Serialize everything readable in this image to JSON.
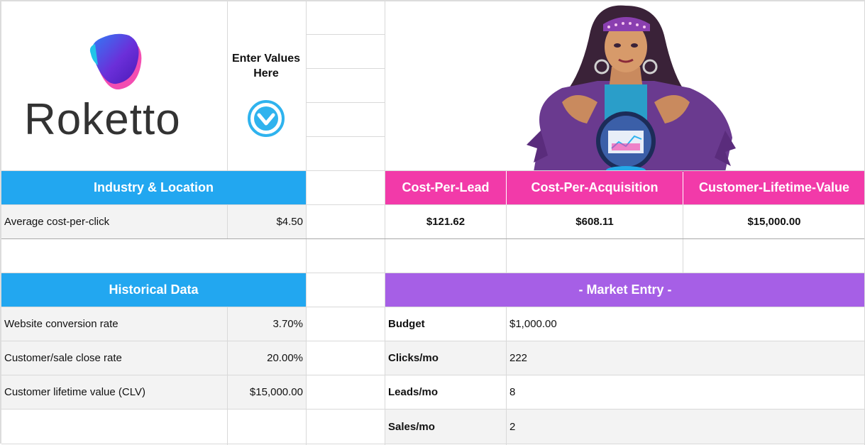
{
  "brand": {
    "name": "Roketto"
  },
  "enter_values": {
    "label": "Enter Values Here"
  },
  "industry": {
    "title": "Industry & Location",
    "rows": [
      {
        "label": "Average cost-per-click",
        "value": "$4.50"
      }
    ]
  },
  "historical": {
    "title": "Historical Data",
    "rows": [
      {
        "label": "Website conversion rate",
        "value": "3.70%"
      },
      {
        "label": "Customer/sale close rate",
        "value": "20.00%"
      },
      {
        "label": "Customer lifetime value (CLV)",
        "value": "$15,000.00"
      }
    ]
  },
  "metrics": {
    "headers": [
      "Cost-Per-Lead",
      "Cost-Per-Acquisition",
      "Customer-Lifetime-Value"
    ],
    "values": [
      "$121.62",
      "$608.11",
      "$15,000.00"
    ]
  },
  "market_entry": {
    "title": "- Market Entry -",
    "rows": [
      {
        "label": "Budget",
        "value": "$1,000.00"
      },
      {
        "label": "Clicks/mo",
        "value": "222"
      },
      {
        "label": "Leads/mo",
        "value": "8"
      },
      {
        "label": "Sales/mo",
        "value": "2"
      }
    ]
  },
  "colors": {
    "blue_header": "#22a7f0",
    "pink_header": "#f23aa9",
    "purple_header": "#a65fe6"
  },
  "icons": {
    "enter_icon": "chevron-down-circle-icon",
    "illustration": "fortune-teller-crystal-ball"
  }
}
